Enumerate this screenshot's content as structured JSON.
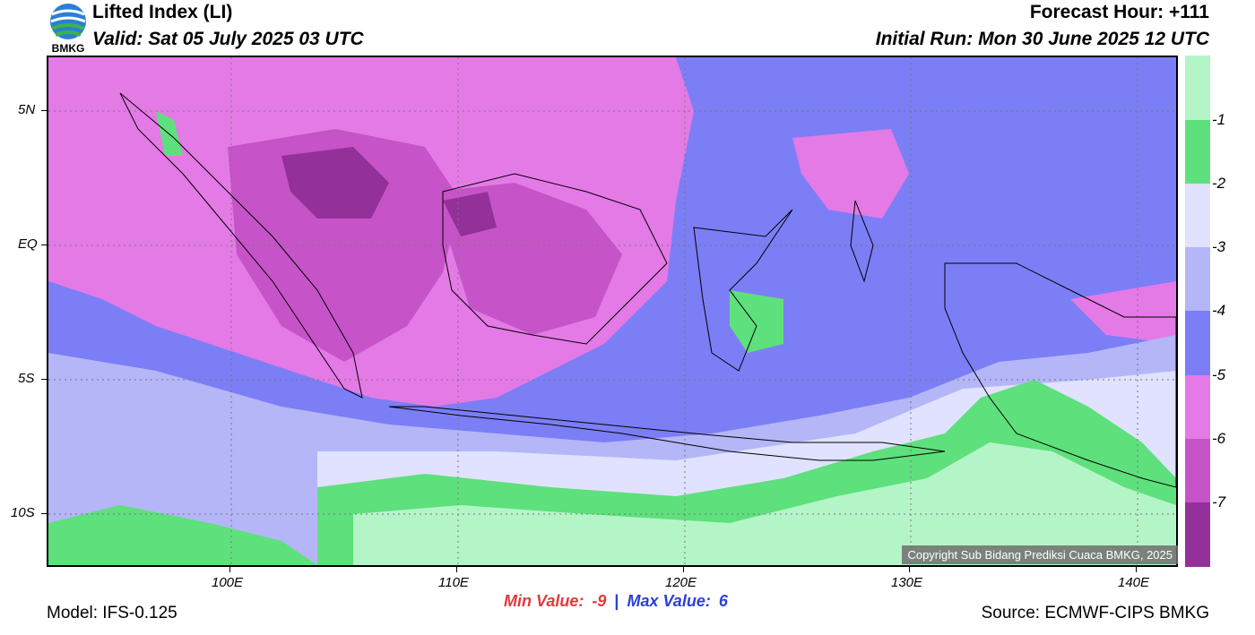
{
  "header": {
    "title": "Lifted Index (LI)",
    "valid": "Valid: Sat 05 July 2025 03 UTC",
    "forecast_hour": "Forecast Hour: +111",
    "initial_run": "Initial Run: Mon 30 June 2025 12 UTC",
    "logo_text": "BMKG"
  },
  "axes": {
    "lat_labels": [
      "5N",
      "EQ",
      "5S",
      "10S"
    ],
    "lon_labels": [
      "100E",
      "110E",
      "120E",
      "130E",
      "140E"
    ]
  },
  "colorbar": {
    "labels": [
      "-1",
      "-2",
      "-3",
      "-4",
      "-5",
      "-6",
      "-7"
    ],
    "colors": [
      "#b4f5c8",
      "#5ee07c",
      "#e0e2ff",
      "#b4b6f8",
      "#7c7ef6",
      "#e47ae6",
      "#c654c8",
      "#94309a"
    ]
  },
  "footer": {
    "copyright": "Copyright Sub Bidang Prediksi Cuaca BMKG, 2025",
    "min_label": "Min Value:",
    "min_value": "-9",
    "separator": "|",
    "max_label": "Max Value:",
    "max_value": "6",
    "model": "Model: IFS-0.125",
    "source": "Source: ECMWF-CIPS BMKG"
  }
}
